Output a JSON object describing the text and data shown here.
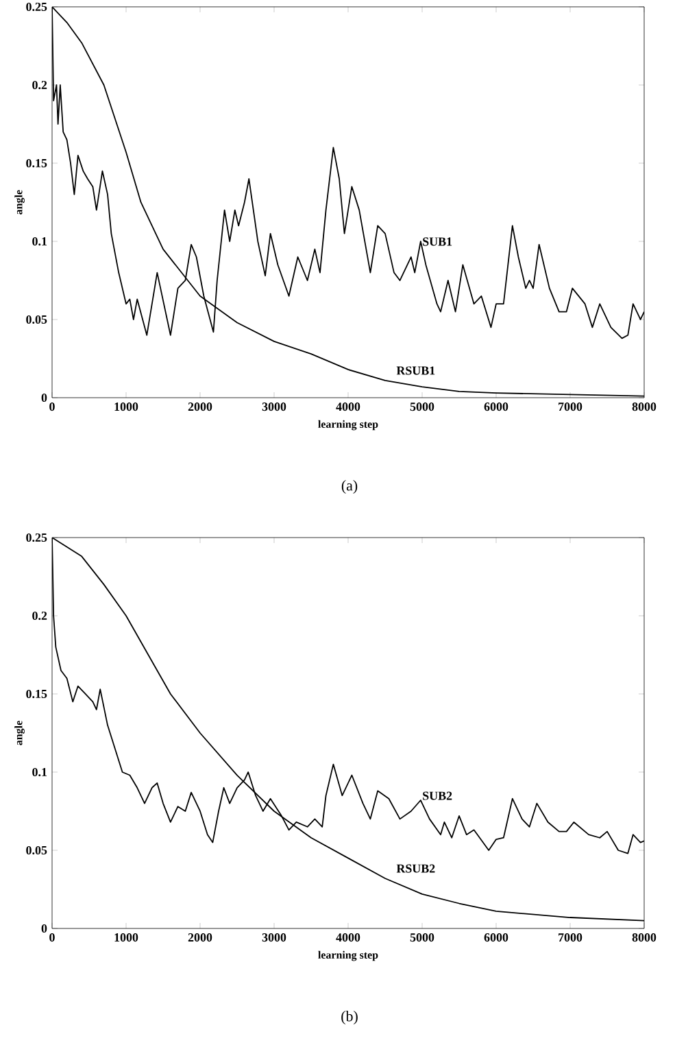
{
  "chart_data": [
    {
      "type": "line",
      "xlabel": "learning step",
      "ylabel": "angle",
      "annotations": [
        "(a)"
      ],
      "xlim": [
        0,
        8000
      ],
      "ylim": [
        0,
        0.25
      ],
      "xticks": [
        0,
        1000,
        2000,
        3000,
        4000,
        5000,
        6000,
        7000,
        8000
      ],
      "yticks": [
        0,
        0.05,
        0.1,
        0.15,
        0.2,
        0.25
      ],
      "series": [
        {
          "name": "SUB1",
          "color": "#000000",
          "x": [
            0,
            20,
            60,
            80,
            110,
            150,
            200,
            250,
            300,
            350,
            420,
            480,
            550,
            600,
            680,
            750,
            800,
            900,
            1000,
            1050,
            1100,
            1150,
            1280,
            1420,
            1600,
            1700,
            1800,
            1880,
            1950,
            2050,
            2180,
            2230,
            2330,
            2400,
            2470,
            2520,
            2600,
            2660,
            2780,
            2880,
            2950,
            3050,
            3200,
            3320,
            3450,
            3550,
            3620,
            3700,
            3800,
            3880,
            3950,
            4050,
            4150,
            4300,
            4400,
            4500,
            4620,
            4700,
            4850,
            4900,
            4980,
            5050,
            5200,
            5250,
            5350,
            5450,
            5550,
            5700,
            5800,
            5930,
            6000,
            6100,
            6220,
            6300,
            6400,
            6450,
            6500,
            6580,
            6720,
            6850,
            6950,
            7030,
            7200,
            7300,
            7400,
            7550,
            7700,
            7780,
            7850,
            7950,
            8000
          ],
          "values": [
            0.25,
            0.19,
            0.2,
            0.175,
            0.2,
            0.17,
            0.165,
            0.15,
            0.13,
            0.155,
            0.145,
            0.14,
            0.135,
            0.12,
            0.145,
            0.13,
            0.105,
            0.08,
            0.06,
            0.063,
            0.05,
            0.063,
            0.04,
            0.08,
            0.04,
            0.07,
            0.075,
            0.098,
            0.09,
            0.065,
            0.042,
            0.075,
            0.12,
            0.1,
            0.12,
            0.11,
            0.125,
            0.14,
            0.1,
            0.078,
            0.105,
            0.085,
            0.065,
            0.09,
            0.075,
            0.095,
            0.08,
            0.12,
            0.16,
            0.14,
            0.105,
            0.135,
            0.12,
            0.08,
            0.11,
            0.105,
            0.08,
            0.075,
            0.09,
            0.08,
            0.1,
            0.085,
            0.06,
            0.055,
            0.075,
            0.055,
            0.085,
            0.06,
            0.065,
            0.045,
            0.06,
            0.06,
            0.11,
            0.09,
            0.07,
            0.075,
            0.07,
            0.098,
            0.07,
            0.055,
            0.055,
            0.07,
            0.06,
            0.045,
            0.06,
            0.045,
            0.038,
            0.04,
            0.06,
            0.05,
            0.055
          ]
        },
        {
          "name": "RSUB1",
          "color": "#000000",
          "x": [
            0,
            200,
            400,
            700,
            1000,
            1200,
            1500,
            2000,
            2500,
            3000,
            3500,
            4000,
            4500,
            5000,
            5500,
            6000,
            7000,
            8000
          ],
          "values": [
            0.25,
            0.24,
            0.227,
            0.2,
            0.157,
            0.125,
            0.095,
            0.065,
            0.048,
            0.036,
            0.028,
            0.018,
            0.011,
            0.007,
            0.004,
            0.003,
            0.002,
            0.001
          ]
        }
      ]
    },
    {
      "type": "line",
      "xlabel": "learning step",
      "ylabel": "angle",
      "annotations": [
        "(b)"
      ],
      "xlim": [
        0,
        8000
      ],
      "ylim": [
        0,
        0.25
      ],
      "xticks": [
        0,
        1000,
        2000,
        3000,
        4000,
        5000,
        6000,
        7000,
        8000
      ],
      "yticks": [
        0,
        0.05,
        0.1,
        0.15,
        0.2,
        0.25
      ],
      "series": [
        {
          "name": "SUB2",
          "color": "#000000",
          "x": [
            0,
            20,
            50,
            120,
            200,
            280,
            350,
            450,
            550,
            600,
            650,
            750,
            850,
            950,
            1050,
            1150,
            1250,
            1350,
            1420,
            1500,
            1600,
            1700,
            1800,
            1880,
            2000,
            2100,
            2170,
            2250,
            2320,
            2400,
            2500,
            2600,
            2650,
            2750,
            2850,
            2950,
            3100,
            3200,
            3300,
            3450,
            3550,
            3650,
            3700,
            3800,
            3920,
            4050,
            4200,
            4300,
            4400,
            4550,
            4700,
            4850,
            4980,
            5100,
            5250,
            5300,
            5400,
            5500,
            5600,
            5700,
            5900,
            6000,
            6100,
            6220,
            6350,
            6450,
            6550,
            6700,
            6850,
            6950,
            7050,
            7250,
            7400,
            7500,
            7650,
            7780,
            7850,
            7950,
            8000
          ],
          "values": [
            0.25,
            0.2,
            0.18,
            0.165,
            0.16,
            0.145,
            0.155,
            0.15,
            0.145,
            0.14,
            0.153,
            0.13,
            0.115,
            0.1,
            0.098,
            0.09,
            0.08,
            0.09,
            0.093,
            0.08,
            0.068,
            0.078,
            0.075,
            0.087,
            0.075,
            0.06,
            0.055,
            0.075,
            0.09,
            0.08,
            0.09,
            0.095,
            0.1,
            0.085,
            0.075,
            0.083,
            0.072,
            0.063,
            0.068,
            0.065,
            0.07,
            0.065,
            0.085,
            0.105,
            0.085,
            0.098,
            0.08,
            0.07,
            0.088,
            0.083,
            0.07,
            0.075,
            0.082,
            0.07,
            0.06,
            0.068,
            0.058,
            0.072,
            0.06,
            0.063,
            0.05,
            0.057,
            0.058,
            0.083,
            0.07,
            0.065,
            0.08,
            0.068,
            0.062,
            0.062,
            0.068,
            0.06,
            0.058,
            0.062,
            0.05,
            0.048,
            0.06,
            0.055,
            0.056
          ]
        },
        {
          "name": "RSUB2",
          "color": "#000000",
          "x": [
            0,
            400,
            700,
            1000,
            1300,
            1600,
            2000,
            2500,
            3000,
            3500,
            4000,
            4500,
            5000,
            5500,
            6000,
            7000,
            8000
          ],
          "values": [
            0.25,
            0.238,
            0.22,
            0.2,
            0.175,
            0.15,
            0.125,
            0.098,
            0.075,
            0.058,
            0.045,
            0.032,
            0.022,
            0.016,
            0.011,
            0.007,
            0.005
          ]
        }
      ]
    }
  ]
}
